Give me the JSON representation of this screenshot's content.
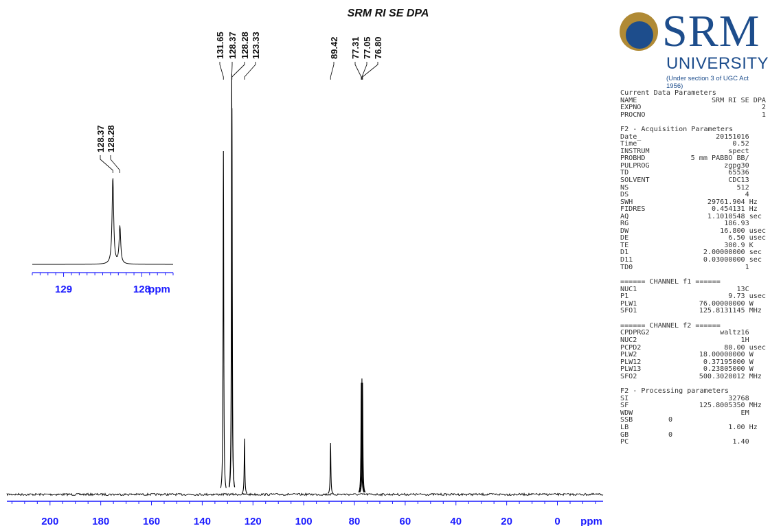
{
  "title": "SRM RI SE DPA",
  "logo": {
    "brand": "SRM",
    "subtitle": "UNIVERSITY",
    "note": "(Under section 3 of UGC Act 1956)",
    "emblem_color": "#b08a35",
    "brand_color": "#1d4d8c"
  },
  "chart_data": [
    {
      "type": "line",
      "name": "13C NMR spectrum",
      "xlabel": "ppm",
      "xlim": [
        217,
        -18
      ],
      "x_reversed": true,
      "ticks": [
        200,
        180,
        160,
        140,
        120,
        100,
        80,
        60,
        40,
        20,
        0
      ],
      "tick_labels": [
        "200",
        "180",
        "160",
        "140",
        "120",
        "100",
        "80",
        "60",
        "40",
        "20",
        "0"
      ],
      "peak_labels": [
        "131.65",
        "128.37",
        "128.28",
        "123.33",
        "89.42",
        "77.31",
        "77.05",
        "76.80"
      ],
      "peaks": [
        {
          "ppm": 131.65,
          "intensity": 0.8
        },
        {
          "ppm": 128.37,
          "intensity": 0.98
        },
        {
          "ppm": 128.28,
          "intensity": 0.9
        },
        {
          "ppm": 123.33,
          "intensity": 0.13
        },
        {
          "ppm": 89.42,
          "intensity": 0.12
        },
        {
          "ppm": 77.31,
          "intensity": 0.26
        },
        {
          "ppm": 77.05,
          "intensity": 0.27
        },
        {
          "ppm": 76.8,
          "intensity": 0.26
        }
      ],
      "axis_color": "#1a1aff",
      "line_color": "#000000"
    },
    {
      "type": "line",
      "name": "inset expansion",
      "xlabel": "ppm",
      "xlim": [
        129.4,
        127.6
      ],
      "x_reversed": true,
      "ticks": [
        129,
        128
      ],
      "tick_labels": [
        "129",
        "128"
      ],
      "peak_labels": [
        "128.37",
        "128.28"
      ],
      "peaks": [
        {
          "ppm": 128.37,
          "intensity": 1.0
        },
        {
          "ppm": 128.28,
          "intensity": 0.43
        }
      ],
      "axis_color": "#1a1aff",
      "line_color": "#000000"
    }
  ],
  "parameters": [
    {
      "type": "head",
      "text": "Current Data Parameters"
    },
    {
      "type": "kv",
      "k": "NAME",
      "v": "SRM RI SE DPA"
    },
    {
      "type": "kv",
      "k": "EXPNO",
      "v": "2"
    },
    {
      "type": "kv",
      "k": "PROCNO",
      "v": "1"
    },
    {
      "type": "sep"
    },
    {
      "type": "head",
      "text": "F2 - Acquisition Parameters"
    },
    {
      "type": "kv",
      "k": "Date_",
      "v": "20151016    "
    },
    {
      "type": "kv",
      "k": "Time",
      "v": "0.52    "
    },
    {
      "type": "kv",
      "k": "INSTRUM",
      "v": "spect    "
    },
    {
      "type": "kv",
      "k": "PROBHD",
      "v": "5 mm PABBO BB/    "
    },
    {
      "type": "kv",
      "k": "PULPROG",
      "v": "zgpg30    "
    },
    {
      "type": "kv",
      "k": "TD",
      "v": "65536    "
    },
    {
      "type": "kv",
      "k": "SOLVENT",
      "v": "CDC13    "
    },
    {
      "type": "kv",
      "k": "NS",
      "v": "512    "
    },
    {
      "type": "kv",
      "k": "DS",
      "v": "4    "
    },
    {
      "type": "kv",
      "k": "SWH",
      "v": "29761.904 Hz  "
    },
    {
      "type": "kv",
      "k": "FIDRES",
      "v": "0.454131 Hz  "
    },
    {
      "type": "kv",
      "k": "AQ",
      "v": "1.1010548 sec "
    },
    {
      "type": "kv",
      "k": "RG",
      "v": "186.93    "
    },
    {
      "type": "kv",
      "k": "DW",
      "v": "16.800 usec"
    },
    {
      "type": "kv",
      "k": "DE",
      "v": "6.50 usec"
    },
    {
      "type": "kv",
      "k": "TE",
      "v": "300.9 K   "
    },
    {
      "type": "kv",
      "k": "D1",
      "v": "2.00000000 sec "
    },
    {
      "type": "kv",
      "k": "D11",
      "v": "0.03000000 sec "
    },
    {
      "type": "kv",
      "k": "TD0",
      "v": "1    "
    },
    {
      "type": "sep"
    },
    {
      "type": "head",
      "text": "====== CHANNEL f1 ======"
    },
    {
      "type": "kv",
      "k": "NUC1",
      "v": "13C    "
    },
    {
      "type": "kv",
      "k": "P1",
      "v": "9.73 usec"
    },
    {
      "type": "kv",
      "k": "PLW1",
      "v": "76.00000000 W   "
    },
    {
      "type": "kv",
      "k": "SFO1",
      "v": "125.8131145 MHz "
    },
    {
      "type": "sep"
    },
    {
      "type": "head",
      "text": "====== CHANNEL f2 ======"
    },
    {
      "type": "kv",
      "k": "CPDPRG2",
      "v": "waltz16    "
    },
    {
      "type": "kv",
      "k": "NUC2",
      "v": "1H    "
    },
    {
      "type": "kv",
      "k": "PCPD2",
      "v": "80.00 usec"
    },
    {
      "type": "kv",
      "k": "PLW2",
      "v": "18.00000000 W   "
    },
    {
      "type": "kv",
      "k": "PLW12",
      "v": "0.37195000 W   "
    },
    {
      "type": "kv",
      "k": "PLW13",
      "v": "0.23805000 W   "
    },
    {
      "type": "kv",
      "k": "SFO2",
      "v": "500.3020012 MHz "
    },
    {
      "type": "sep"
    },
    {
      "type": "head",
      "text": "F2 - Processing parameters"
    },
    {
      "type": "kv",
      "k": "SI",
      "v": "32768    "
    },
    {
      "type": "kv",
      "k": "SF",
      "v": "125.8005350 MHz "
    },
    {
      "type": "kv",
      "k": "WDW",
      "v": "EM    "
    },
    {
      "type": "kv",
      "k": "SSB",
      "v": "0",
      "mid": true
    },
    {
      "type": "kv",
      "k": "LB",
      "v": "1.00 Hz  "
    },
    {
      "type": "kv",
      "k": "GB",
      "v": "0",
      "mid": true
    },
    {
      "type": "kv",
      "k": "PC",
      "v": "1.40    "
    }
  ]
}
